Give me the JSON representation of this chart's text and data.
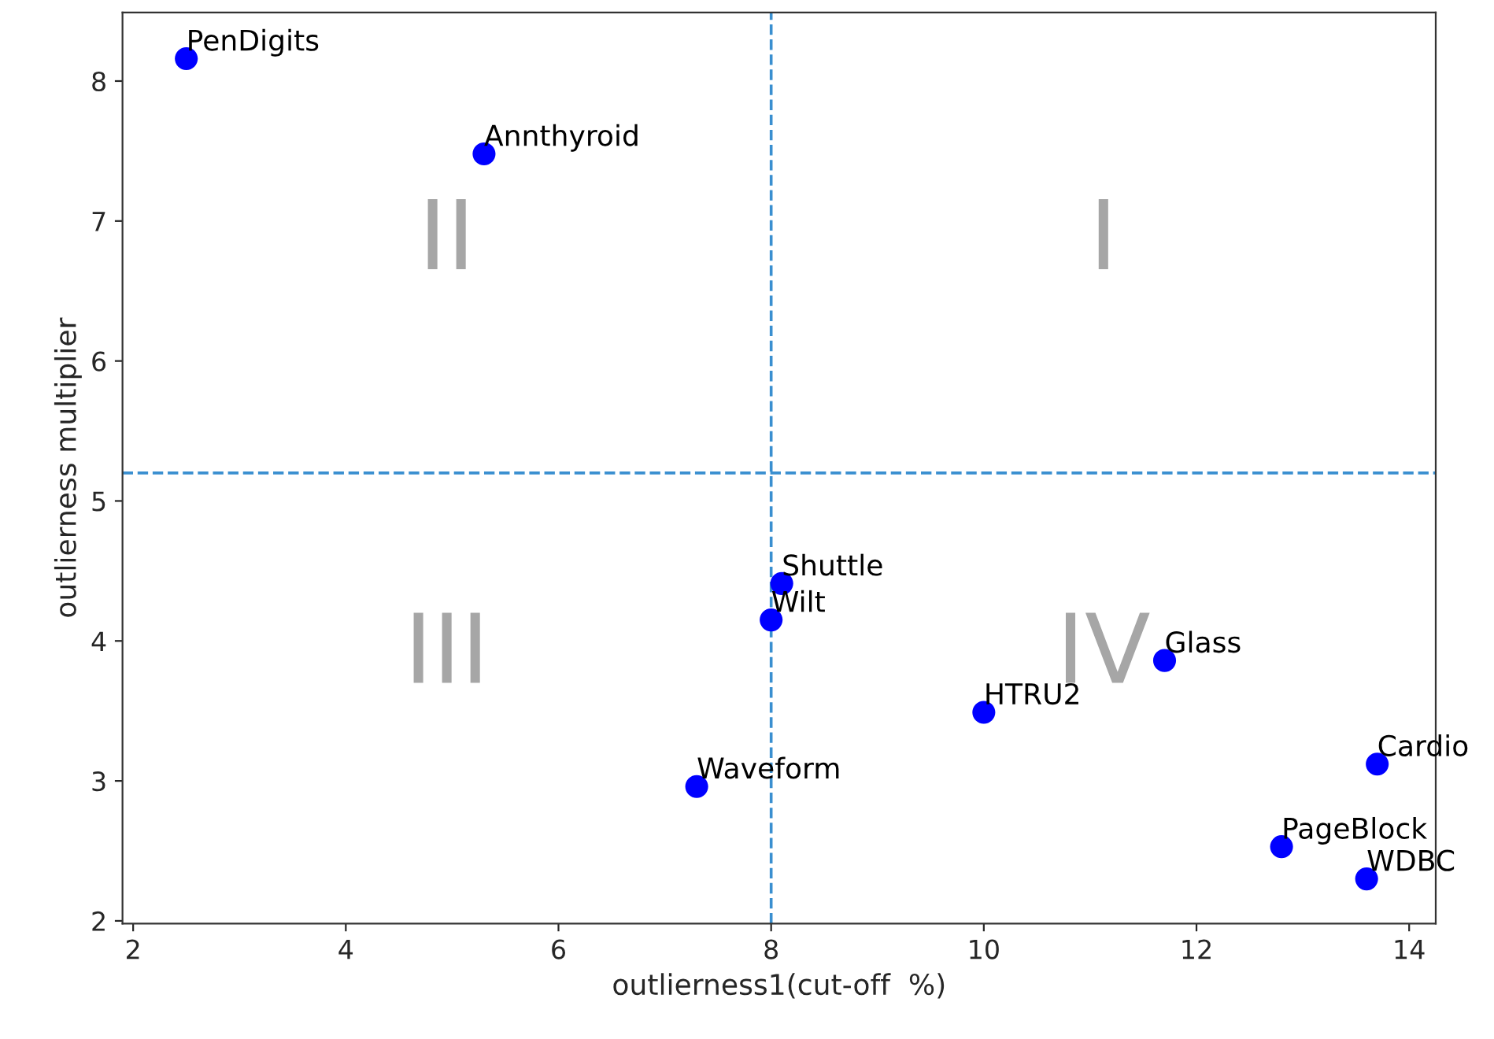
{
  "chart_data": {
    "type": "scatter",
    "xlabel": "outlierness1(cut-off  %)",
    "ylabel": "outlierness multiplier",
    "series": [
      {
        "color": "#0000ff",
        "x": [
          2.5,
          5.3,
          8.1,
          8.0,
          7.3,
          10.0,
          11.7,
          13.7,
          12.8,
          13.6
        ],
        "values": [
          8.16,
          7.48,
          4.41,
          4.15,
          2.96,
          3.49,
          3.86,
          3.12,
          2.53,
          2.3
        ]
      }
    ],
    "marker": "circle",
    "xlim": [
      1.9,
      14.25
    ],
    "xticks": [
      2,
      4,
      6,
      8,
      10,
      12,
      14
    ],
    "ylim": [
      1.98,
      8.49
    ],
    "yticks": [
      2,
      3,
      4,
      5,
      6,
      7,
      8
    ],
    "ref_lines": [
      {
        "axis": "x",
        "value": 8,
        "color": "#3a8fd0",
        "line_style": "dashed"
      },
      {
        "axis": "y",
        "value": 5.2,
        "color": "#3a8fd0",
        "line_style": "dashed"
      }
    ],
    "grid": false,
    "legend": false,
    "annotations": [
      {
        "text": "PenDigits",
        "x": 2.5,
        "y": 8.16
      },
      {
        "text": "Annthyroid",
        "x": 5.3,
        "y": 7.48
      },
      {
        "text": "Shuttle",
        "x": 8.1,
        "y": 4.41
      },
      {
        "text": "Wilt",
        "x": 8.0,
        "y": 4.15
      },
      {
        "text": "Waveform",
        "x": 7.3,
        "y": 2.96
      },
      {
        "text": "HTRU2",
        "x": 10.0,
        "y": 3.49
      },
      {
        "text": "Glass",
        "x": 11.7,
        "y": 3.86
      },
      {
        "text": "Cardio",
        "x": 13.7,
        "y": 3.12
      },
      {
        "text": "PageBlock",
        "x": 12.8,
        "y": 2.53
      },
      {
        "text": "WDBC",
        "x": 13.6,
        "y": 2.3
      },
      "I",
      "II",
      "III",
      "IV"
    ]
  }
}
